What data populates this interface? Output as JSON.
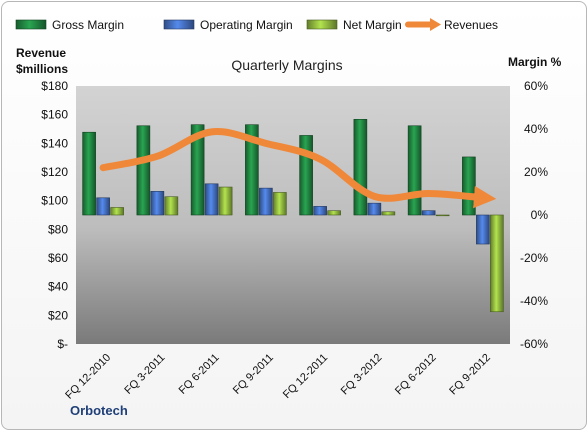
{
  "chart_data": {
    "type": "bar",
    "title": "Quarterly Margins",
    "brand": "Orbotech",
    "left_axis": {
      "label_line1": "Revenue",
      "label_line2": "$millions",
      "min": 0,
      "max": 180,
      "step": 20,
      "tick_labels": [
        "$-",
        "$20",
        "$40",
        "$60",
        "$80",
        "$100",
        "$120",
        "$140",
        "$160",
        "$180"
      ]
    },
    "right_axis": {
      "label": "Margin %",
      "min": -60,
      "max": 60,
      "step": 20,
      "tick_labels": [
        "-60%",
        "-40%",
        "-20%",
        "0%",
        "20%",
        "40%",
        "60%"
      ]
    },
    "categories": [
      "FQ 12-2010",
      "FQ 3-2011",
      "FQ 6-2011",
      "FQ 9-2011",
      "FQ 12-2011",
      "FQ 3-2012",
      "FQ 6-2012",
      "FQ 9-2012"
    ],
    "series": [
      {
        "name": "Gross Margin",
        "axis": "right",
        "kind": "bar",
        "color": "#1e7a3c",
        "values": [
          38.5,
          41.5,
          42.0,
          42.0,
          37.0,
          44.5,
          41.5,
          27.0
        ]
      },
      {
        "name": "Operating Margin",
        "axis": "right",
        "kind": "bar",
        "color": "#3f66b0",
        "values": [
          8.0,
          11.0,
          14.5,
          12.5,
          4.0,
          5.5,
          2.0,
          -13.5
        ]
      },
      {
        "name": "Net Margin",
        "axis": "right",
        "kind": "bar",
        "color": "#84a83a",
        "values": [
          3.5,
          8.5,
          13.0,
          10.5,
          2.0,
          1.5,
          0.0,
          -45.0
        ]
      },
      {
        "name": "Revenues",
        "axis": "left",
        "kind": "line",
        "color": "#f0883a",
        "values": [
          123,
          131,
          148,
          140,
          129,
          103,
          105,
          102
        ]
      }
    ],
    "legend_position": "top",
    "grid": false
  }
}
